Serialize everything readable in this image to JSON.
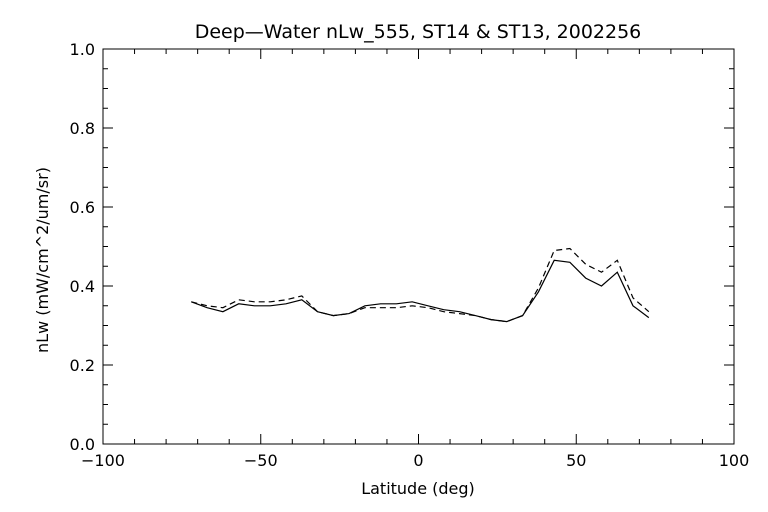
{
  "chart_data": {
    "type": "line",
    "title": "Deep—Water nLw_555, ST14 & ST13, 2002256",
    "xlabel": "Latitude (deg)",
    "ylabel": "nLw (mW/cm^2/um/sr)",
    "xlim": [
      -100,
      100
    ],
    "ylim": [
      0.0,
      1.0
    ],
    "xticks": [
      -100,
      -50,
      0,
      50,
      100
    ],
    "xtick_labels": [
      "−100",
      "−50",
      "0",
      "50",
      "100"
    ],
    "yticks": [
      0.0,
      0.2,
      0.4,
      0.6,
      0.8,
      1.0
    ],
    "ytick_labels": [
      "0.0",
      "0.2",
      "0.4",
      "0.6",
      "0.8",
      "1.0"
    ],
    "grid": false,
    "series": [
      {
        "style": "solid",
        "x": [
          -72,
          -67,
          -62,
          -57,
          -52,
          -47,
          -42,
          -37,
          -32,
          -27,
          -22,
          -17,
          -12,
          -7,
          -2,
          3,
          8,
          13,
          18,
          23,
          28,
          33,
          38,
          43,
          48,
          53,
          58,
          63,
          68,
          73
        ],
        "y": [
          0.36,
          0.345,
          0.335,
          0.355,
          0.35,
          0.35,
          0.355,
          0.365,
          0.335,
          0.325,
          0.33,
          0.35,
          0.355,
          0.355,
          0.36,
          0.35,
          0.34,
          0.335,
          0.325,
          0.315,
          0.31,
          0.325,
          0.385,
          0.465,
          0.46,
          0.42,
          0.4,
          0.435,
          0.35,
          0.32
        ]
      },
      {
        "style": "dashed",
        "x": [
          -72,
          -67,
          -62,
          -57,
          -52,
          -47,
          -42,
          -37,
          -32,
          -27,
          -22,
          -17,
          -12,
          -7,
          -2,
          3,
          8,
          13,
          18,
          23,
          28,
          33,
          38,
          43,
          48,
          53,
          58,
          63,
          68,
          73
        ],
        "y": [
          0.36,
          0.35,
          0.345,
          0.365,
          0.36,
          0.36,
          0.365,
          0.375,
          0.335,
          0.325,
          0.33,
          0.345,
          0.345,
          0.345,
          0.35,
          0.345,
          0.335,
          0.33,
          0.325,
          0.315,
          0.31,
          0.325,
          0.395,
          0.49,
          0.495,
          0.455,
          0.435,
          0.465,
          0.37,
          0.335
        ]
      }
    ]
  }
}
